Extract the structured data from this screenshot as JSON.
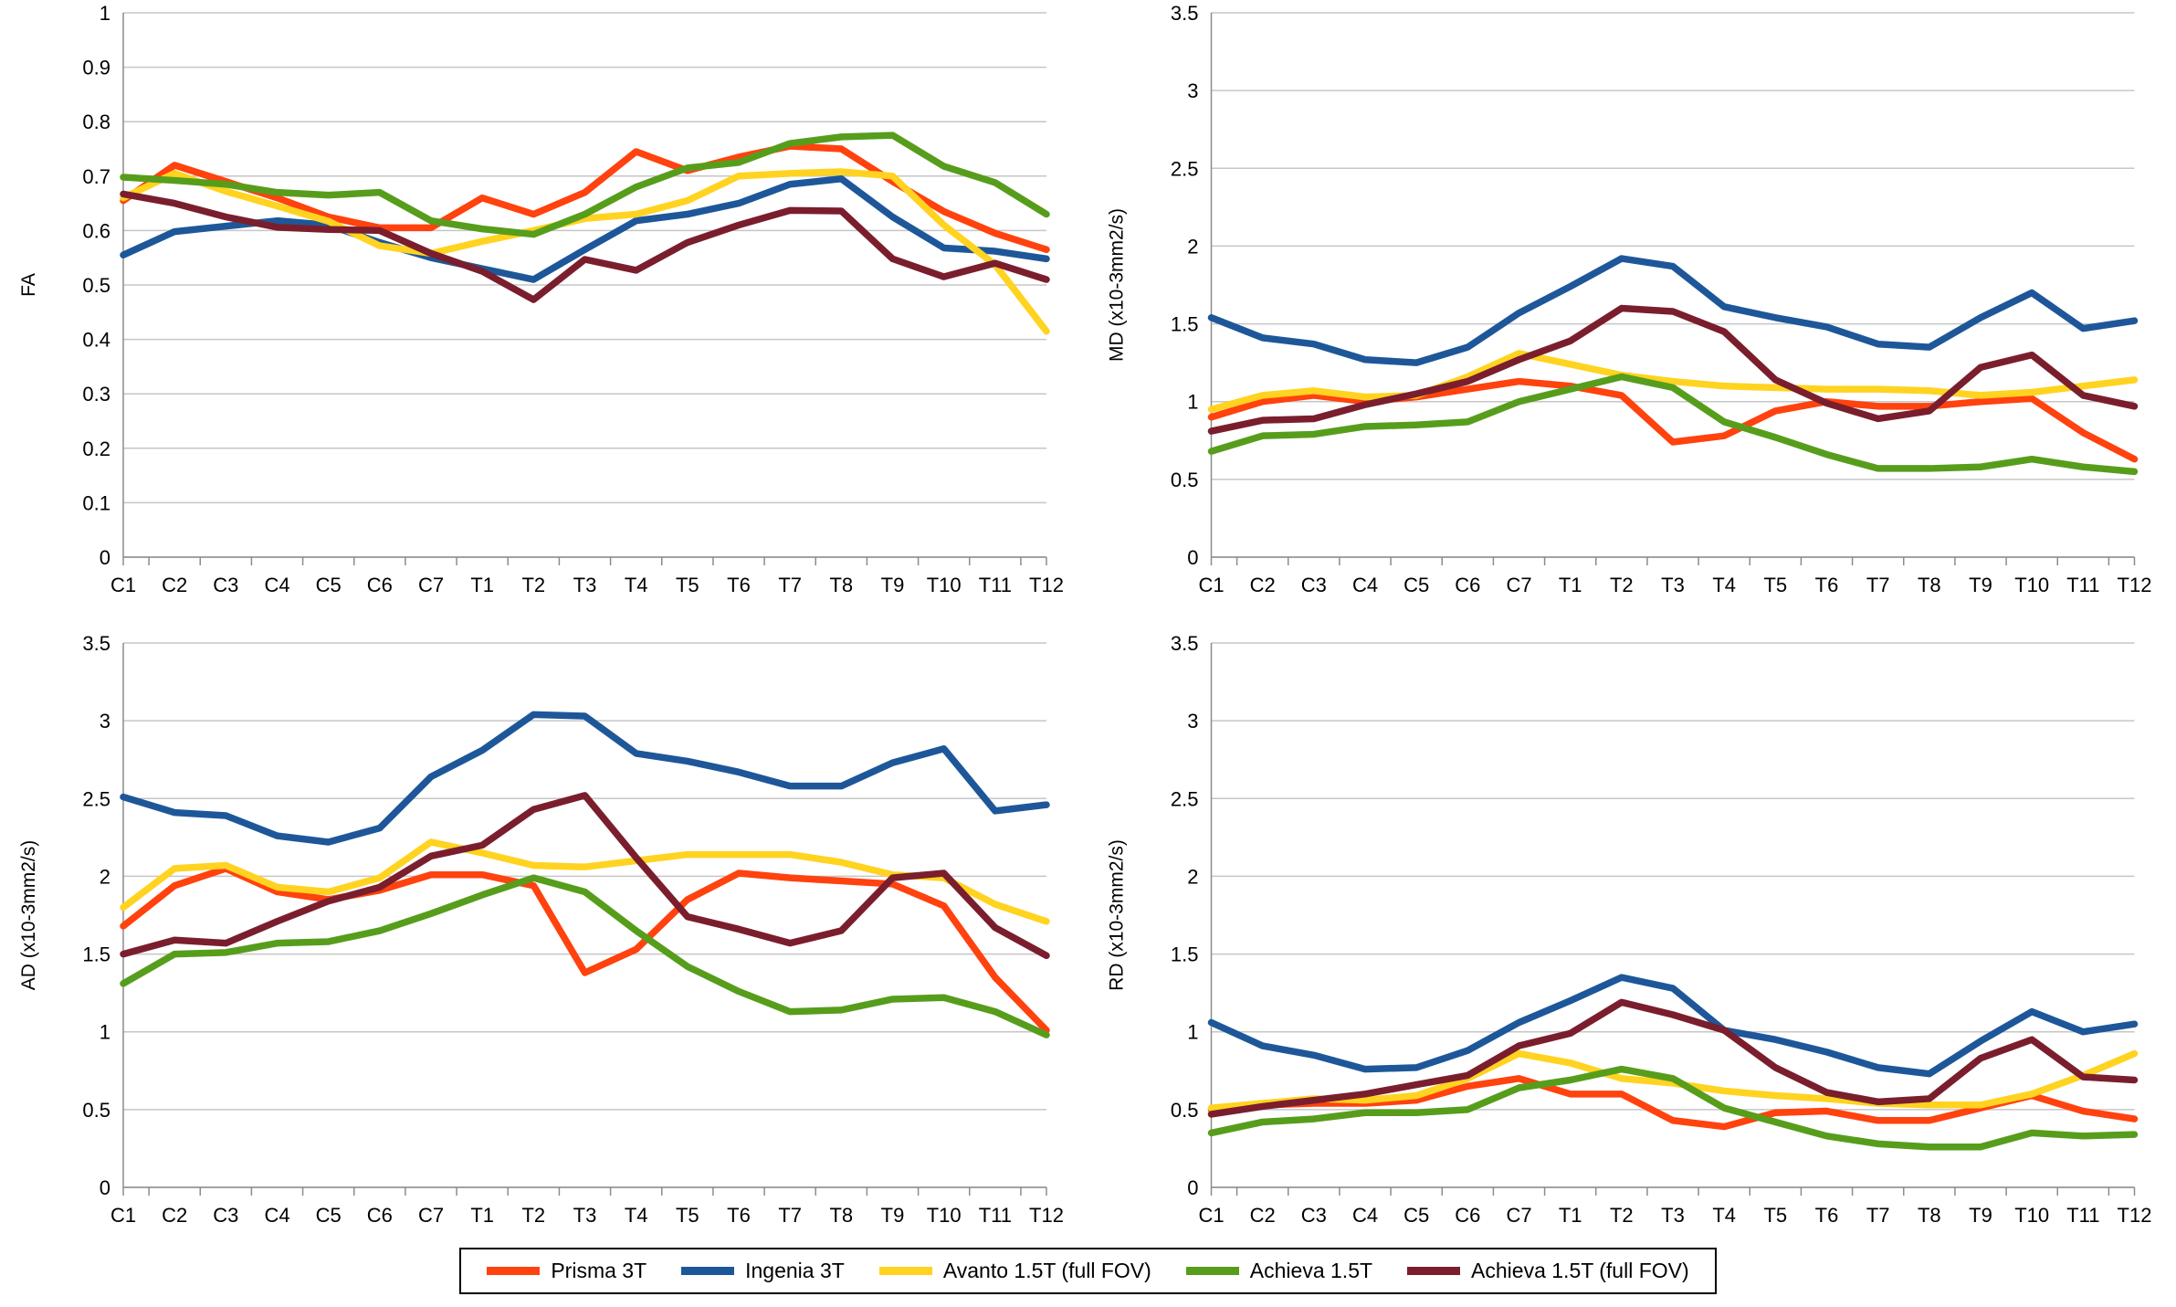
{
  "figure": {
    "background": "#ffffff",
    "grid_color": "#c6c6c6",
    "axis_color": "#8c8c8c",
    "text_color": "#000000"
  },
  "legend": {
    "items": [
      {
        "label": "Prisma 3T",
        "color": "#FF420E"
      },
      {
        "label": "Ingenia 3T",
        "color": "#1E5799"
      },
      {
        "label": "Avanto 1.5T (full FOV)",
        "color": "#FFD320"
      },
      {
        "label": "Achieva 1.5T",
        "color": "#579D1C"
      },
      {
        "label": "Achieva 1.5T (full FOV)",
        "color": "#7A1E2D"
      }
    ]
  },
  "chart_data": [
    {
      "id": "fa",
      "type": "line",
      "title": "",
      "xlabel": "",
      "ylabel": "FA",
      "ylim": [
        0,
        1
      ],
      "ytick": 0.1,
      "grid": true,
      "legend_position": "bottom-shared",
      "categories": [
        "C1",
        "C2",
        "C3",
        "C4",
        "C5",
        "C6",
        "C7",
        "T1",
        "T2",
        "T3",
        "T4",
        "T5",
        "T6",
        "T7",
        "T8",
        "T9",
        "T10",
        "T11",
        "T12"
      ],
      "series": [
        {
          "name": "Prisma 3T",
          "color": "#FF420E",
          "values": [
            0.655,
            0.72,
            0.69,
            0.66,
            0.625,
            0.605,
            0.605,
            0.66,
            0.63,
            0.67,
            0.745,
            0.71,
            0.735,
            0.755,
            0.75,
            0.69,
            0.635,
            0.595,
            0.565
          ]
        },
        {
          "name": "Ingenia 3T",
          "color": "#1E5799",
          "values": [
            0.555,
            0.598,
            0.608,
            0.618,
            0.61,
            0.578,
            0.55,
            0.53,
            0.51,
            0.565,
            0.618,
            0.63,
            0.65,
            0.685,
            0.695,
            0.625,
            0.568,
            0.562,
            0.548
          ]
        },
        {
          "name": "Avanto 1.5T (full FOV)",
          "color": "#FFD320",
          "values": [
            0.66,
            0.705,
            0.672,
            0.645,
            0.617,
            0.572,
            0.558,
            0.58,
            0.6,
            0.622,
            0.63,
            0.655,
            0.7,
            0.705,
            0.708,
            0.7,
            0.61,
            0.537,
            0.415
          ]
        },
        {
          "name": "Achieva 1.5T",
          "color": "#579D1C",
          "values": [
            0.698,
            0.692,
            0.685,
            0.67,
            0.665,
            0.67,
            0.618,
            0.603,
            0.593,
            0.63,
            0.68,
            0.715,
            0.725,
            0.76,
            0.772,
            0.775,
            0.718,
            0.688,
            0.63
          ]
        },
        {
          "name": "Achieva 1.5T (full FOV)",
          "color": "#7A1E2D",
          "values": [
            0.667,
            0.65,
            0.625,
            0.606,
            0.602,
            0.6,
            0.558,
            0.525,
            0.473,
            0.547,
            0.527,
            0.578,
            0.61,
            0.637,
            0.636,
            0.548,
            0.515,
            0.54,
            0.51
          ]
        }
      ]
    },
    {
      "id": "md",
      "type": "line",
      "title": "",
      "xlabel": "",
      "ylabel": "MD (x10-3mm2/s)",
      "ylim": [
        0,
        3.5
      ],
      "ytick": 0.5,
      "grid": true,
      "legend_position": "bottom-shared",
      "categories": [
        "C1",
        "C2",
        "C3",
        "C4",
        "C5",
        "C6",
        "C7",
        "T1",
        "T2",
        "T3",
        "T4",
        "T5",
        "T6",
        "T7",
        "T8",
        "T9",
        "T10",
        "T11",
        "T12"
      ],
      "series": [
        {
          "name": "Prisma 3T",
          "color": "#FF420E",
          "values": [
            0.9,
            1.0,
            1.04,
            1.0,
            1.03,
            1.08,
            1.13,
            1.1,
            1.04,
            0.74,
            0.78,
            0.94,
            1.0,
            0.97,
            0.97,
            1.0,
            1.02,
            0.8,
            0.63
          ]
        },
        {
          "name": "Ingenia 3T",
          "color": "#1E5799",
          "values": [
            1.54,
            1.41,
            1.37,
            1.27,
            1.25,
            1.35,
            1.57,
            1.74,
            1.92,
            1.87,
            1.61,
            1.54,
            1.48,
            1.37,
            1.35,
            1.54,
            1.7,
            1.47,
            1.52
          ]
        },
        {
          "name": "Avanto 1.5T (full FOV)",
          "color": "#FFD320",
          "values": [
            0.95,
            1.04,
            1.07,
            1.03,
            1.04,
            1.16,
            1.31,
            1.24,
            1.17,
            1.13,
            1.1,
            1.09,
            1.08,
            1.08,
            1.07,
            1.04,
            1.06,
            1.1,
            1.14
          ]
        },
        {
          "name": "Achieva 1.5T",
          "color": "#579D1C",
          "values": [
            0.68,
            0.78,
            0.79,
            0.84,
            0.85,
            0.87,
            1.0,
            1.08,
            1.16,
            1.09,
            0.87,
            0.77,
            0.66,
            0.57,
            0.57,
            0.58,
            0.63,
            0.58,
            0.55
          ]
        },
        {
          "name": "Achieva 1.5T (full FOV)",
          "color": "#7A1E2D",
          "values": [
            0.81,
            0.88,
            0.89,
            0.98,
            1.05,
            1.13,
            1.27,
            1.39,
            1.6,
            1.58,
            1.45,
            1.14,
            0.99,
            0.89,
            0.94,
            1.22,
            1.3,
            1.04,
            0.97
          ]
        }
      ]
    },
    {
      "id": "ad",
      "type": "line",
      "title": "",
      "xlabel": "",
      "ylabel": "AD (x10-3mm2/s)",
      "ylim": [
        0,
        3.5
      ],
      "ytick": 0.5,
      "grid": true,
      "legend_position": "bottom-shared",
      "categories": [
        "C1",
        "C2",
        "C3",
        "C4",
        "C5",
        "C6",
        "C7",
        "T1",
        "T2",
        "T3",
        "T4",
        "T5",
        "T6",
        "T7",
        "T8",
        "T9",
        "T10",
        "T11",
        "T12"
      ],
      "series": [
        {
          "name": "Prisma 3T",
          "color": "#FF420E",
          "values": [
            1.68,
            1.94,
            2.05,
            1.9,
            1.85,
            1.91,
            2.01,
            2.01,
            1.94,
            1.38,
            1.53,
            1.85,
            2.02,
            1.99,
            1.97,
            1.95,
            1.81,
            1.35,
            1.01
          ]
        },
        {
          "name": "Ingenia 3T",
          "color": "#1E5799",
          "values": [
            2.51,
            2.41,
            2.39,
            2.26,
            2.22,
            2.31,
            2.64,
            2.81,
            3.04,
            3.03,
            2.79,
            2.74,
            2.67,
            2.58,
            2.58,
            2.73,
            2.82,
            2.42,
            2.46
          ]
        },
        {
          "name": "Avanto 1.5T (full FOV)",
          "color": "#FFD320",
          "values": [
            1.8,
            2.05,
            2.07,
            1.93,
            1.9,
            1.99,
            2.22,
            2.15,
            2.07,
            2.06,
            2.1,
            2.14,
            2.14,
            2.14,
            2.09,
            2.01,
            1.99,
            1.82,
            1.71
          ]
        },
        {
          "name": "Achieva 1.5T",
          "color": "#579D1C",
          "values": [
            1.31,
            1.5,
            1.51,
            1.57,
            1.58,
            1.65,
            1.76,
            1.88,
            1.99,
            1.9,
            1.65,
            1.42,
            1.26,
            1.13,
            1.14,
            1.21,
            1.22,
            1.13,
            0.98
          ]
        },
        {
          "name": "Achieva 1.5T (full FOV)",
          "color": "#7A1E2D",
          "values": [
            1.5,
            1.59,
            1.57,
            1.71,
            1.84,
            1.93,
            2.13,
            2.2,
            2.43,
            2.52,
            2.12,
            1.74,
            1.66,
            1.57,
            1.65,
            1.99,
            2.02,
            1.67,
            1.49
          ]
        }
      ]
    },
    {
      "id": "rd",
      "type": "line",
      "title": "",
      "xlabel": "",
      "ylabel": "RD (x10-3mm2/s)",
      "ylim": [
        0,
        3.5
      ],
      "ytick": 0.5,
      "grid": true,
      "legend_position": "bottom-shared",
      "categories": [
        "C1",
        "C2",
        "C3",
        "C4",
        "C5",
        "C6",
        "C7",
        "T1",
        "T2",
        "T3",
        "T4",
        "T5",
        "T6",
        "T7",
        "T8",
        "T9",
        "T10",
        "T11",
        "T12"
      ],
      "series": [
        {
          "name": "Prisma 3T",
          "color": "#FF420E",
          "values": [
            0.5,
            0.53,
            0.54,
            0.54,
            0.56,
            0.65,
            0.7,
            0.6,
            0.6,
            0.43,
            0.39,
            0.48,
            0.49,
            0.43,
            0.43,
            0.51,
            0.59,
            0.49,
            0.44
          ]
        },
        {
          "name": "Ingenia 3T",
          "color": "#1E5799",
          "values": [
            1.06,
            0.91,
            0.85,
            0.76,
            0.77,
            0.88,
            1.06,
            1.2,
            1.35,
            1.28,
            1.01,
            0.95,
            0.87,
            0.77,
            0.73,
            0.94,
            1.13,
            1.0,
            1.05
          ]
        },
        {
          "name": "Avanto 1.5T (full FOV)",
          "color": "#FFD320",
          "values": [
            0.51,
            0.54,
            0.57,
            0.56,
            0.59,
            0.7,
            0.86,
            0.8,
            0.7,
            0.67,
            0.62,
            0.59,
            0.57,
            0.54,
            0.53,
            0.53,
            0.6,
            0.72,
            0.86
          ]
        },
        {
          "name": "Achieva 1.5T",
          "color": "#579D1C",
          "values": [
            0.35,
            0.42,
            0.44,
            0.48,
            0.48,
            0.5,
            0.64,
            0.69,
            0.76,
            0.7,
            0.51,
            0.42,
            0.33,
            0.28,
            0.26,
            0.26,
            0.35,
            0.33,
            0.34
          ]
        },
        {
          "name": "Achieva 1.5T (full FOV)",
          "color": "#7A1E2D",
          "values": [
            0.47,
            0.52,
            0.56,
            0.6,
            0.66,
            0.72,
            0.91,
            0.99,
            1.19,
            1.11,
            1.01,
            0.77,
            0.61,
            0.55,
            0.57,
            0.83,
            0.95,
            0.71,
            0.69
          ]
        }
      ]
    }
  ]
}
